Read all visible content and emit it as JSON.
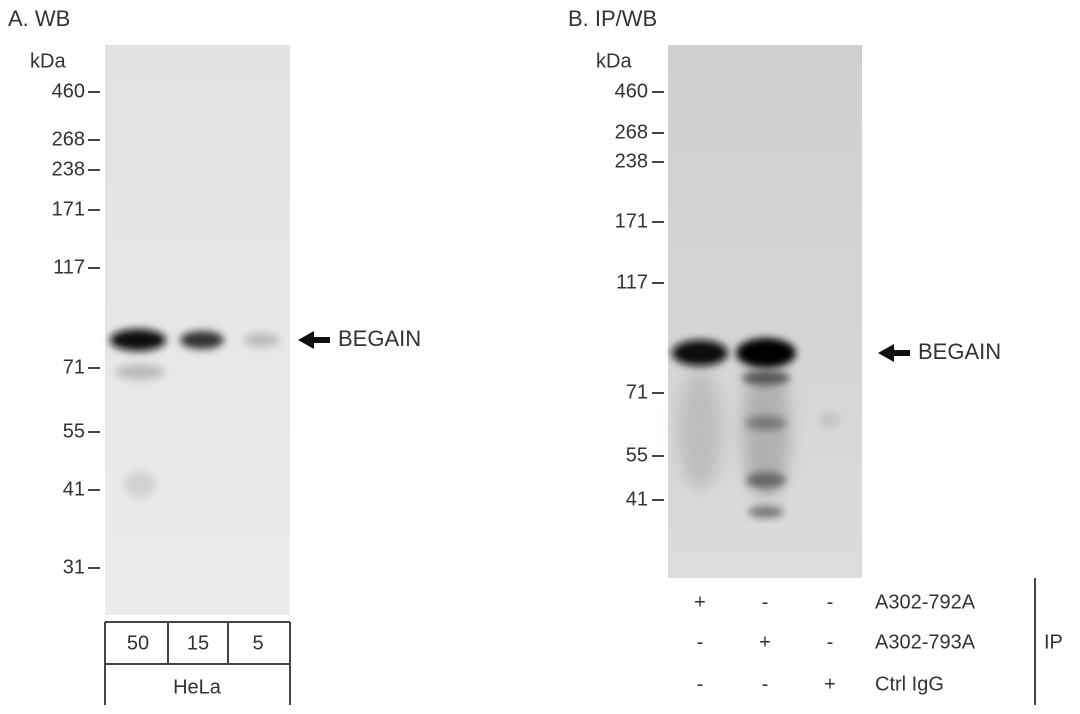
{
  "panels": [
    {
      "label": "A. WB",
      "unit": "kDa",
      "markers": [
        "460",
        "268",
        "238",
        "171",
        "117",
        "71",
        "55",
        "41",
        "31"
      ],
      "target": "BEGAIN",
      "lanes": [
        "50",
        "15",
        "5"
      ],
      "sample": "HeLa"
    },
    {
      "label": "B. IP/WB",
      "unit": "kDa",
      "markers": [
        "460",
        "268",
        "238",
        "171",
        "117",
        "71",
        "55",
        "41"
      ],
      "target": "BEGAIN",
      "rows": [
        {
          "signs": [
            "+",
            "-",
            "-"
          ],
          "label": "A302-792A"
        },
        {
          "signs": [
            "-",
            "+",
            "-"
          ],
          "label": "A302-793A"
        },
        {
          "signs": [
            "-",
            "-",
            "+"
          ],
          "label": "Ctrl IgG"
        }
      ],
      "group": "IP"
    }
  ]
}
